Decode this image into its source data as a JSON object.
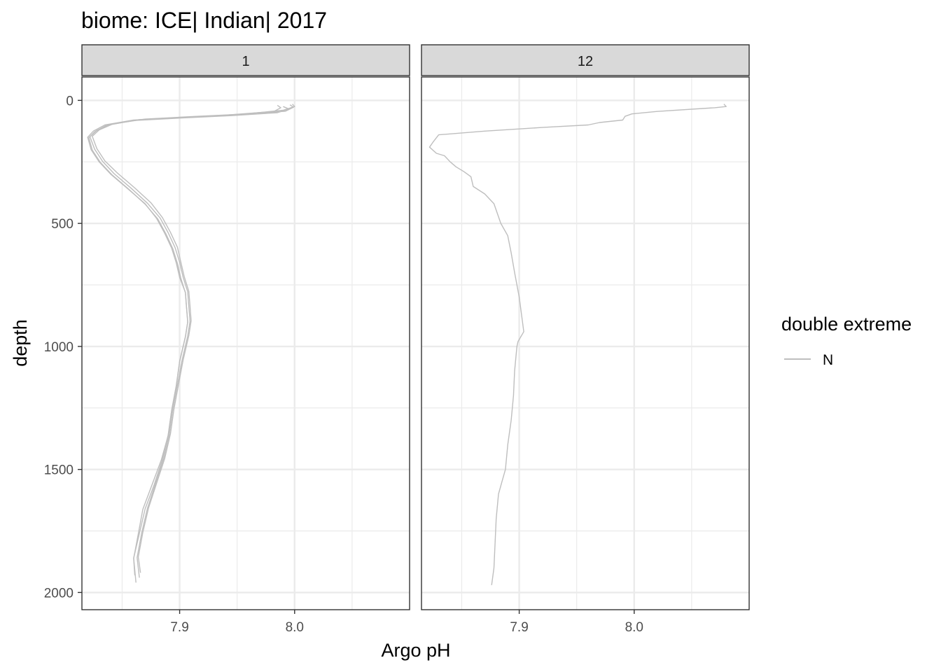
{
  "chart_data": {
    "type": "line",
    "title": "biome: ICE| Indian| 2017",
    "xlabel": "Argo pH",
    "ylabel": "depth",
    "y_reversed": true,
    "xlim": [
      7.815,
      8.1
    ],
    "ylim": [
      -95,
      2070
    ],
    "x_ticks": [
      7.9,
      8.0
    ],
    "x_tick_labels": [
      "7.9",
      "8.0"
    ],
    "y_ticks": [
      0,
      500,
      1000,
      1500,
      2000
    ],
    "y_tick_labels": [
      "0",
      "500",
      "1000",
      "1500",
      "2000"
    ],
    "grid": true,
    "legend": {
      "title": "double extreme",
      "placement": "right",
      "entries": [
        {
          "label": "N",
          "color": "#bebebe"
        }
      ]
    },
    "panels": [
      {
        "strip": "1",
        "series": [
          {
            "name": "N",
            "x": [
              7.985,
              7.988,
              7.982,
              7.94,
              7.9,
              7.86,
              7.835,
              7.825,
              7.82,
              7.823,
              7.83,
              7.84,
              7.855,
              7.87,
              7.88,
              7.887,
              7.893,
              7.897,
              7.9,
              7.905,
              7.906,
              7.907,
              7.905,
              7.9,
              7.897,
              7.893,
              7.89,
              7.885,
              7.878,
              7.87,
              7.865,
              7.86,
              7.862
            ],
            "y": [
              20,
              30,
              45,
              60,
              70,
              80,
              100,
              125,
              150,
              200,
              250,
              300,
              360,
              420,
              480,
              540,
              600,
              660,
              720,
              780,
              840,
              900,
              960,
              1060,
              1160,
              1260,
              1360,
              1460,
              1560,
              1660,
              1760,
              1860,
              1960
            ]
          },
          {
            "name": "N",
            "x": [
              7.998,
              8.0,
              7.99,
              7.95,
              7.905,
              7.865,
              7.84,
              7.828,
              7.822,
              7.826,
              7.833,
              7.843,
              7.858,
              7.872,
              7.883,
              7.89,
              7.896,
              7.9,
              7.903,
              7.907,
              7.908,
              7.909,
              7.907,
              7.902,
              7.898,
              7.894,
              7.891,
              7.886,
              7.879,
              7.872,
              7.867,
              7.863,
              7.865
            ],
            "y": [
              15,
              25,
              40,
              58,
              68,
              78,
              98,
              122,
              148,
              198,
              248,
              298,
              358,
              418,
              478,
              538,
              598,
              658,
              718,
              778,
              838,
              898,
              958,
              1058,
              1158,
              1258,
              1358,
              1458,
              1558,
              1658,
              1758,
              1858,
              1940
            ]
          },
          {
            "name": "N",
            "x": [
              7.99,
              7.995,
              7.985,
              7.945,
              7.9,
              7.86,
              7.836,
              7.826,
              7.821,
              7.824,
              7.831,
              7.841,
              7.856,
              7.87,
              7.881,
              7.888,
              7.894,
              7.898,
              7.901,
              7.905,
              7.906,
              7.907,
              7.905,
              7.9,
              7.897,
              7.893,
              7.89,
              7.884,
              7.876,
              7.868,
              7.864,
              7.86,
              7.861
            ],
            "y": [
              25,
              35,
              50,
              62,
              72,
              82,
              102,
              128,
              152,
              202,
              252,
              302,
              362,
              422,
              482,
              542,
              602,
              662,
              722,
              782,
              842,
              902,
              962,
              1062,
              1162,
              1262,
              1362,
              1462,
              1562,
              1662,
              1762,
              1862,
              1930
            ]
          },
          {
            "name": "N",
            "x": [
              7.996,
              7.999,
              7.992,
              7.955,
              7.91,
              7.87,
              7.842,
              7.83,
              7.824,
              7.828,
              7.835,
              7.846,
              7.861,
              7.875,
              7.885,
              7.892,
              7.898,
              7.901,
              7.904,
              7.908,
              7.909,
              7.91,
              7.908,
              7.903,
              7.899,
              7.895,
              7.892,
              7.887,
              7.88,
              7.873,
              7.868,
              7.864,
              7.866
            ],
            "y": [
              18,
              28,
              44,
              56,
              66,
              76,
              96,
              120,
              146,
              196,
              246,
              296,
              356,
              416,
              476,
              536,
              596,
              656,
              716,
              776,
              836,
              896,
              956,
              1056,
              1156,
              1256,
              1356,
              1456,
              1556,
              1656,
              1756,
              1856,
              1920
            ]
          }
        ]
      },
      {
        "strip": "12",
        "series": [
          {
            "name": "N",
            "x": [
              8.078,
              8.08,
              8.07,
              8.02,
              7.998,
              7.992,
              7.99,
              7.97,
              7.96,
              7.92,
              7.87,
              7.83,
              7.825,
              7.822,
              7.828,
              7.835,
              7.84,
              7.845,
              7.852,
              7.858,
              7.86,
              7.87,
              7.878,
              7.884,
              7.89,
              7.893,
              7.896,
              7.9,
              7.904,
              7.899,
              7.898,
              7.896,
              7.895,
              7.893,
              7.89,
              7.888,
              7.885,
              7.882,
              7.88,
              7.879,
              7.878,
              7.876
            ],
            "y": [
              15,
              25,
              30,
              45,
              55,
              65,
              80,
              90,
              100,
              110,
              125,
              140,
              170,
              190,
              215,
              225,
              250,
              270,
              290,
              310,
              350,
              380,
              420,
              500,
              550,
              620,
              700,
              800,
              940,
              980,
              1000,
              1100,
              1200,
              1300,
              1400,
              1500,
              1550,
              1600,
              1700,
              1800,
              1900,
              1970
            ]
          }
        ]
      }
    ]
  }
}
